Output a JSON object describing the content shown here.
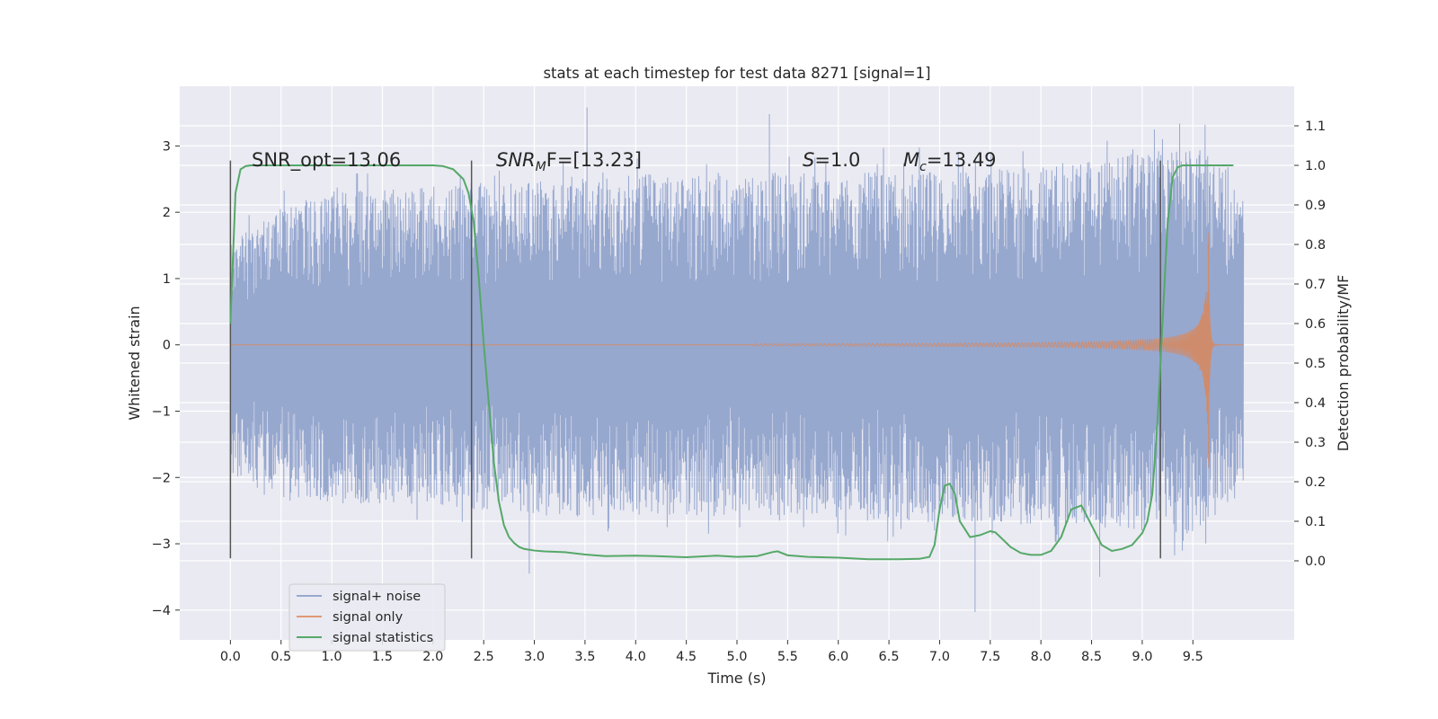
{
  "chart_data": {
    "type": "line",
    "title": "stats at each timestep for test data 8271 [signal=1]",
    "xlabel": "Time (s)",
    "ylabel": "Whitened strain",
    "y2label": "Detection probability/MF",
    "xlim": [
      -0.5,
      10.5
    ],
    "ylim": [
      -4.45,
      3.9
    ],
    "y2lim": [
      -0.2,
      1.2
    ],
    "xticks": [
      "0.0",
      "0.5",
      "1.0",
      "1.5",
      "2.0",
      "2.5",
      "3.0",
      "3.5",
      "4.0",
      "4.5",
      "5.0",
      "5.5",
      "6.0",
      "6.5",
      "7.0",
      "7.5",
      "8.0",
      "8.5",
      "9.0",
      "9.5"
    ],
    "yticks": [
      "3",
      "2",
      "1",
      "0",
      "−1",
      "−2",
      "−3",
      "−4"
    ],
    "y2ticks": [
      "1.1",
      "1.0",
      "0.9",
      "0.8",
      "0.7",
      "0.6",
      "0.5",
      "0.4",
      "0.3",
      "0.2",
      "0.1",
      "0.0"
    ],
    "grid": true,
    "legend_position": "lower-left",
    "colors": {
      "noise": "#97a8cf",
      "signal": "#dd8452",
      "stats": "#55a868",
      "vlines": "#555555",
      "background": "#eaeaf2"
    },
    "annotations": {
      "snr_opt": "SNR_opt=13.06",
      "snr_mf_base": "SNR",
      "snr_mf_sub": "M",
      "snr_mf_rest": "F=[13.23]",
      "s_var": "S",
      "s_rest": "=1.0",
      "mc_base": "M",
      "mc_sub": "c",
      "mc_rest": "=13.49"
    },
    "vertical_lines_x": [
      0.0,
      2.38,
      9.18
    ],
    "series": [
      {
        "name": "signal+ noise",
        "kind": "noise",
        "x_range": [
          0.0,
          10.0
        ],
        "envelope_upper": [
          [
            0.0,
            1.5
          ],
          [
            0.5,
            2.2
          ],
          [
            1.0,
            2.3
          ],
          [
            2.0,
            2.4
          ],
          [
            3.0,
            2.5
          ],
          [
            4.0,
            2.6
          ],
          [
            5.0,
            2.6
          ],
          [
            6.0,
            2.6
          ],
          [
            7.0,
            2.6
          ],
          [
            8.0,
            2.7
          ],
          [
            9.0,
            2.9
          ],
          [
            9.6,
            3.0
          ],
          [
            10.0,
            2.2
          ]
        ],
        "envelope_lower": [
          [
            0.0,
            -2.0
          ],
          [
            0.5,
            -2.3
          ],
          [
            1.0,
            -2.4
          ],
          [
            2.0,
            -2.4
          ],
          [
            3.0,
            -2.6
          ],
          [
            4.0,
            -2.6
          ],
          [
            5.0,
            -2.6
          ],
          [
            6.0,
            -2.6
          ],
          [
            7.0,
            -2.7
          ],
          [
            8.0,
            -2.7
          ],
          [
            9.0,
            -2.8
          ],
          [
            9.6,
            -2.9
          ],
          [
            10.0,
            -2.1
          ]
        ],
        "extremes": [
          [
            3.52,
            3.58
          ],
          [
            5.32,
            3.48
          ],
          [
            2.95,
            -3.45
          ],
          [
            7.35,
            -4.03
          ],
          [
            8.58,
            -3.5
          ],
          [
            9.12,
            3.25
          ],
          [
            9.62,
            3.32
          ]
        ]
      },
      {
        "name": "signal only",
        "kind": "chirp",
        "x_range": [
          0.0,
          10.0
        ],
        "merger_time": 9.66,
        "peak_amplitude": 2.75
      },
      {
        "name": "signal statistics",
        "kind": "line",
        "axis": "right",
        "x": [
          0.0,
          0.05,
          0.1,
          0.15,
          0.2,
          0.5,
          1.0,
          1.5,
          2.0,
          2.1,
          2.2,
          2.3,
          2.35,
          2.4,
          2.45,
          2.5,
          2.55,
          2.6,
          2.65,
          2.7,
          2.75,
          2.8,
          2.85,
          2.9,
          3.0,
          3.1,
          3.3,
          3.5,
          3.7,
          4.0,
          4.2,
          4.5,
          4.8,
          5.0,
          5.2,
          5.35,
          5.4,
          5.5,
          5.7,
          6.0,
          6.3,
          6.6,
          6.8,
          6.9,
          6.95,
          7.0,
          7.05,
          7.1,
          7.15,
          7.2,
          7.3,
          7.4,
          7.5,
          7.55,
          7.6,
          7.7,
          7.8,
          7.9,
          8.0,
          8.1,
          8.2,
          8.3,
          8.4,
          8.5,
          8.6,
          8.7,
          8.8,
          8.9,
          9.0,
          9.05,
          9.1,
          9.15,
          9.2,
          9.25,
          9.3,
          9.35,
          9.4,
          9.5,
          9.9
        ],
        "values": [
          0.6,
          0.93,
          0.99,
          0.998,
          1.0,
          1.0,
          1.0,
          1.0,
          1.0,
          0.998,
          0.99,
          0.965,
          0.93,
          0.86,
          0.72,
          0.55,
          0.4,
          0.25,
          0.15,
          0.09,
          0.06,
          0.045,
          0.035,
          0.03,
          0.026,
          0.024,
          0.022,
          0.016,
          0.012,
          0.013,
          0.012,
          0.009,
          0.013,
          0.01,
          0.012,
          0.022,
          0.024,
          0.014,
          0.01,
          0.008,
          0.004,
          0.004,
          0.005,
          0.01,
          0.04,
          0.13,
          0.19,
          0.195,
          0.17,
          0.1,
          0.06,
          0.065,
          0.075,
          0.072,
          0.06,
          0.035,
          0.02,
          0.015,
          0.015,
          0.025,
          0.06,
          0.13,
          0.14,
          0.09,
          0.04,
          0.025,
          0.03,
          0.04,
          0.07,
          0.1,
          0.17,
          0.35,
          0.6,
          0.85,
          0.97,
          0.995,
          1.0,
          1.0,
          1.0
        ]
      }
    ]
  }
}
